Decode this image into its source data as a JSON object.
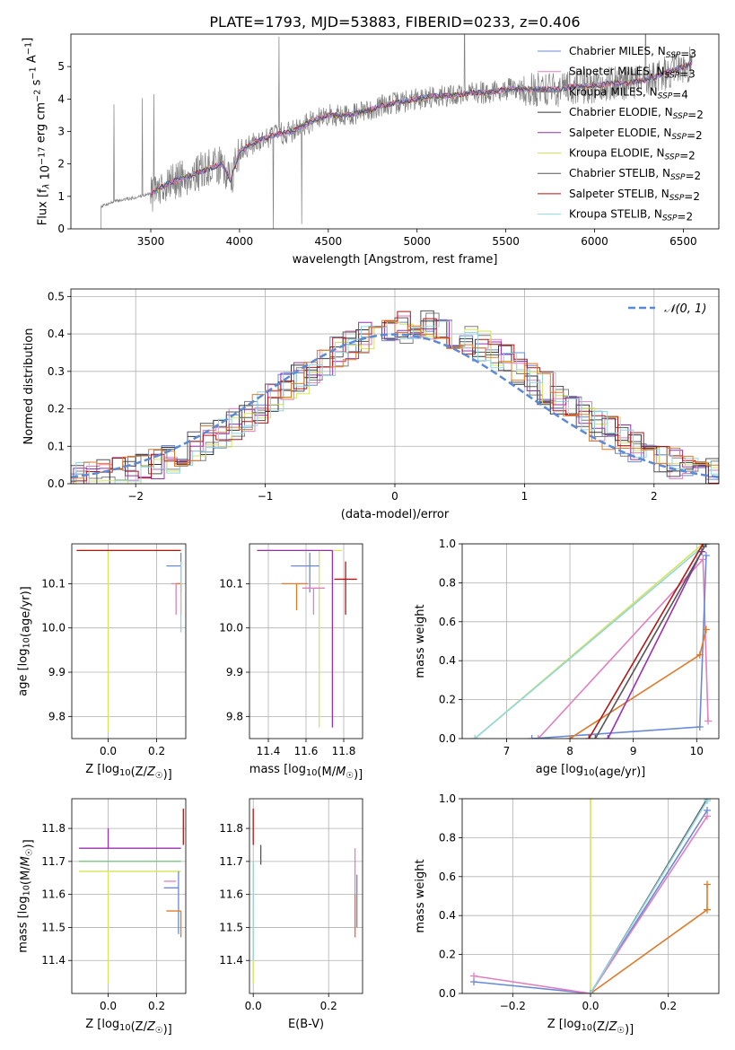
{
  "figure": {
    "title": "PLATE=1793, MJD=53883, FIBERID=0233, z=0.406"
  },
  "chart_data": [
    {
      "id": "spectrum",
      "type": "line",
      "xlabel": "wavelength [Angstrom, rest frame]",
      "ylabel": "Flux [f_λ 10^-17 erg cm^-2 s^-1 A^-1]",
      "xlim": [
        3050,
        6700
      ],
      "ylim": [
        0,
        6
      ],
      "xticks": [
        3500,
        4000,
        4500,
        5000,
        5500,
        6000,
        6500
      ],
      "yticks": [
        0,
        1,
        2,
        3,
        4,
        5
      ],
      "grid": false,
      "legend_position": "top-right",
      "legend": [
        {
          "label": "Chabrier MILES, N_SSP=3",
          "color": "#6a8ad6"
        },
        {
          "label": "Salpeter MILES, N_SSP=3",
          "color": "#e27fbf"
        },
        {
          "label": "Kroupa MILES, N_SSP=4",
          "color": "#7f7f7f"
        },
        {
          "label": "Chabrier ELODIE, N_SSP=2",
          "color": "#333333"
        },
        {
          "label": "Salpeter ELODIE, N_SSP=2",
          "color": "#9a2fb1"
        },
        {
          "label": "Kroupa ELODIE, N_SSP=2",
          "color": "#d6e35a"
        },
        {
          "label": "Chabrier STELIB, N_SSP=2",
          "color": "#555555"
        },
        {
          "label": "Salpeter STELIB, N_SSP=2",
          "color": "#b51515"
        },
        {
          "label": "Kroupa STELIB, N_SSP=2",
          "color": "#8fd6e0"
        }
      ],
      "model_x": [
        3220,
        3300,
        3400,
        3500,
        3600,
        3700,
        3800,
        3900,
        3950,
        4000,
        4100,
        4200,
        4300,
        4400,
        4500,
        4600,
        4700,
        4800,
        4900,
        5000,
        5100,
        5200,
        5300,
        5400,
        5500,
        5600,
        5700,
        5800,
        5900,
        6000,
        6100,
        6200,
        6300,
        6400,
        6500,
        6550
      ],
      "model_y": [
        0.7,
        0.85,
        0.95,
        1.1,
        1.4,
        1.6,
        1.8,
        2.0,
        1.5,
        2.4,
        2.7,
        2.9,
        3.0,
        3.3,
        3.5,
        3.5,
        3.6,
        3.8,
        3.9,
        4.0,
        4.1,
        4.1,
        4.2,
        4.2,
        4.3,
        4.3,
        4.3,
        4.3,
        4.4,
        4.4,
        4.5,
        4.5,
        4.6,
        4.8,
        5.0,
        5.1
      ],
      "data_range": [
        3220,
        6550
      ]
    },
    {
      "id": "residuals",
      "type": "area",
      "xlabel": "(data-model)/error",
      "ylabel": "Normed distribution",
      "xlim": [
        -2.5,
        2.5
      ],
      "ylim": [
        0,
        0.52
      ],
      "xticks": [
        -2,
        -1,
        0,
        1,
        2
      ],
      "yticks": [
        0.0,
        0.1,
        0.2,
        0.3,
        0.4,
        0.5
      ],
      "grid": true,
      "legend_position": "top-right",
      "legend": [
        {
          "label": "𝒩(0, 1)",
          "color": "#5a8ad6"
        }
      ],
      "bin_width": 0.1,
      "colors": [
        "#6a8ad6",
        "#e27fbf",
        "#7f7f7f",
        "#333333",
        "#9a2fb1",
        "#d6e35a",
        "#555555",
        "#b51515",
        "#8fd6e0",
        "#e07a2a"
      ]
    },
    {
      "id": "age_vs_Z",
      "type": "scatter",
      "xlabel": "Z [log10(Z/Z☉)]",
      "ylabel": "age  [log10(age/yr)]",
      "xlim": [
        -0.15,
        0.32
      ],
      "ylim": [
        9.75,
        10.19
      ],
      "xticks": [
        0.0,
        0.2
      ],
      "yticks": [
        9.8,
        9.9,
        10.0,
        10.1
      ],
      "grid": true,
      "points": [
        {
          "x": 0.0,
          "y": 10.175,
          "xerr": [
            0.13,
            0.3
          ],
          "yerr": [
            0.41,
            0.0
          ],
          "color": "#d6e35a"
        },
        {
          "x": 0.0,
          "y": 10.175,
          "xerr": [
            0.13,
            0.3
          ],
          "yerr": [
            0.0,
            0.0
          ],
          "color": "#b51515"
        },
        {
          "x": 0.3,
          "y": 10.14,
          "xerr": [
            0.06,
            0.0
          ],
          "yerr": [
            0.06,
            0.03
          ],
          "color": "#6a8ad6"
        },
        {
          "x": 0.28,
          "y": 10.1,
          "xerr": [
            0.02,
            0.02
          ],
          "yerr": [
            0.07,
            0.0
          ],
          "color": "#e27fbf"
        },
        {
          "x": 0.3,
          "y": 10.1,
          "xerr": [
            0.02,
            0.0
          ],
          "yerr": [
            0.07,
            0.0
          ],
          "color": "#e07a2a"
        },
        {
          "x": 0.3,
          "y": 10.08,
          "xerr": [
            0.0,
            0.0
          ],
          "yerr": [
            0.09,
            0.07
          ],
          "color": "#8fd6e0"
        }
      ]
    },
    {
      "id": "age_vs_mass",
      "type": "scatter",
      "xlabel": "mass [log10(M/M☉)]",
      "ylabel": "",
      "xlim": [
        11.3,
        11.9
      ],
      "ylim": [
        9.75,
        10.19
      ],
      "xticks": [
        11.4,
        11.6,
        11.8
      ],
      "yticks": [
        9.8,
        9.9,
        10.0,
        10.1
      ],
      "grid": true,
      "points": [
        {
          "x": 11.67,
          "y": 10.175,
          "xerr": [
            0.33,
            0.12
          ],
          "yerr": [
            0.4,
            0.0
          ],
          "color": "#d6e35a"
        },
        {
          "x": 11.74,
          "y": 10.175,
          "xerr": [
            0.4,
            0.0
          ],
          "yerr": [
            0.4,
            0.0
          ],
          "color": "#9a2fb1"
        },
        {
          "x": 11.62,
          "y": 10.14,
          "xerr": [
            0.1,
            0.05
          ],
          "yerr": [
            0.06,
            0.03
          ],
          "color": "#6a8ad6"
        },
        {
          "x": 11.64,
          "y": 10.09,
          "xerr": [
            0.06,
            0.06
          ],
          "yerr": [
            0.06,
            0.0
          ],
          "color": "#e27fbf"
        },
        {
          "x": 11.55,
          "y": 10.1,
          "xerr": [
            0.08,
            0.06
          ],
          "yerr": [
            0.06,
            0.0
          ],
          "color": "#e07a2a"
        },
        {
          "x": 11.81,
          "y": 10.11,
          "xerr": [
            0.06,
            0.06
          ],
          "yerr": [
            0.08,
            0.04
          ],
          "color": "#b51515"
        }
      ]
    },
    {
      "id": "weight_vs_age",
      "type": "line",
      "xlabel": "age  [log10(age/yr)]",
      "ylabel": "mass weight",
      "xlim": [
        6.3,
        10.35
      ],
      "ylim": [
        0,
        1
      ],
      "xticks": [
        7,
        8,
        9,
        10
      ],
      "yticks": [
        0.0,
        0.2,
        0.4,
        0.6,
        0.8,
        1.0
      ],
      "grid": true,
      "series": [
        {
          "color": "#d6e35a",
          "points": [
            [
              6.5,
              0.0
            ],
            [
              10.1,
              1.0
            ]
          ]
        },
        {
          "color": "#8fd6e0",
          "points": [
            [
              6.5,
              0.0
            ],
            [
              10.15,
              1.0
            ]
          ]
        },
        {
          "color": "#e27fbf",
          "points": [
            [
              7.5,
              0.0
            ],
            [
              10.1,
              0.92
            ],
            [
              10.18,
              0.09
            ]
          ]
        },
        {
          "color": "#6a8ad6",
          "points": [
            [
              7.4,
              0.0
            ],
            [
              10.05,
              0.06
            ],
            [
              10.15,
              0.94
            ]
          ]
        },
        {
          "color": "#e07a2a",
          "points": [
            [
              8.0,
              0.0
            ],
            [
              10.05,
              0.43
            ],
            [
              10.15,
              0.56
            ]
          ]
        },
        {
          "color": "#9a2fb1",
          "points": [
            [
              8.6,
              0.0
            ],
            [
              10.08,
              0.96
            ]
          ]
        },
        {
          "color": "#b51515",
          "points": [
            [
              8.3,
              0.0
            ],
            [
              10.1,
              1.0
            ]
          ]
        },
        {
          "color": "#555555",
          "points": [
            [
              8.4,
              0.0
            ],
            [
              10.15,
              1.0
            ]
          ]
        }
      ]
    },
    {
      "id": "mass_vs_Z",
      "type": "scatter",
      "xlabel": "Z [log10(Z/Z☉)]",
      "ylabel": "mass [log10(M/M☉)]",
      "xlim": [
        -0.15,
        0.32
      ],
      "ylim": [
        11.3,
        11.89
      ],
      "xticks": [
        0.0,
        0.2
      ],
      "yticks": [
        11.4,
        11.5,
        11.6,
        11.7,
        11.8
      ],
      "grid": true,
      "points": [
        {
          "x": 0.0,
          "y": 11.74,
          "xerr": [
            0.12,
            0.3
          ],
          "yerr": [
            0.0,
            0.06
          ],
          "color": "#9a2fb1"
        },
        {
          "x": 0.0,
          "y": 11.7,
          "xerr": [
            0.12,
            0.3
          ],
          "yerr": [
            0.0,
            0.0
          ],
          "color": "#555555"
        },
        {
          "x": 0.0,
          "y": 11.7,
          "xerr": [
            0.12,
            0.3
          ],
          "yerr": [
            0.0,
            0.0
          ],
          "color": "#7fd18a"
        },
        {
          "x": 0.0,
          "y": 11.67,
          "xerr": [
            0.12,
            0.3
          ],
          "yerr": [
            0.34,
            0.0
          ],
          "color": "#d6e35a"
        },
        {
          "x": 0.29,
          "y": 11.62,
          "xerr": [
            0.06,
            0.0
          ],
          "yerr": [
            0.14,
            0.05
          ],
          "color": "#6a8ad6"
        },
        {
          "x": 0.28,
          "y": 11.64,
          "xerr": [
            0.05,
            0.0
          ],
          "yerr": [
            0.0,
            0.0
          ],
          "color": "#e27fbf"
        },
        {
          "x": 0.3,
          "y": 11.55,
          "xerr": [
            0.06,
            0.0
          ],
          "yerr": [
            0.08,
            0.0
          ],
          "color": "#e07a2a"
        },
        {
          "x": 0.31,
          "y": 11.8,
          "xerr": [
            0.0,
            0.0
          ],
          "yerr": [
            0.05,
            0.06
          ],
          "color": "#b51515"
        }
      ]
    },
    {
      "id": "mass_vs_ebv",
      "type": "scatter",
      "xlabel": "E(B-V)",
      "ylabel": "",
      "xlim": [
        -0.01,
        0.29
      ],
      "ylim": [
        11.3,
        11.89
      ],
      "xticks": [
        0.0,
        0.2
      ],
      "yticks": [
        11.4,
        11.5,
        11.6,
        11.7,
        11.8
      ],
      "grid": true,
      "points": [
        {
          "x": 0.0,
          "y": 11.8,
          "xerr": [
            0.0,
            0.0
          ],
          "yerr": [
            0.05,
            0.06
          ],
          "color": "#b51515"
        },
        {
          "x": 0.0,
          "y": 11.6,
          "xerr": [
            0.0,
            0.0
          ],
          "yerr": [
            0.27,
            0.1
          ],
          "color": "#d6e35a"
        },
        {
          "x": 0.0,
          "y": 11.6,
          "xerr": [
            0.0,
            0.0
          ],
          "yerr": [
            0.2,
            0.1
          ],
          "color": "#8fd6e0"
        },
        {
          "x": 0.02,
          "y": 11.72,
          "xerr": [
            0.0,
            0.0
          ],
          "yerr": [
            0.03,
            0.03
          ],
          "color": "#555555"
        },
        {
          "x": 0.27,
          "y": 11.6,
          "xerr": [
            0.0,
            0.0
          ],
          "yerr": [
            0.13,
            0.14
          ],
          "color": "#e27fbf"
        },
        {
          "x": 0.27,
          "y": 11.55,
          "xerr": [
            0.0,
            0.0
          ],
          "yerr": [
            0.08,
            0.05
          ],
          "color": "#e07a2a"
        },
        {
          "x": 0.275,
          "y": 11.6,
          "xerr": [
            0.0,
            0.0
          ],
          "yerr": [
            0.1,
            0.06
          ],
          "color": "#6a8ad6"
        }
      ]
    },
    {
      "id": "weight_vs_Z",
      "type": "line",
      "xlabel": "Z [log10(Z/Z☉)]",
      "ylabel": "mass weight",
      "xlim": [
        -0.33,
        0.33
      ],
      "ylim": [
        0,
        1
      ],
      "xticks": [
        -0.2,
        0.0,
        0.2
      ],
      "yticks": [
        0.0,
        0.2,
        0.4,
        0.6,
        0.8,
        1.0
      ],
      "grid": true,
      "series": [
        {
          "color": "#d6e35a",
          "points": [
            [
              0.0,
              0.0
            ],
            [
              0.0,
              1.0
            ]
          ]
        },
        {
          "color": "#e07a2a",
          "points": [
            [
              0.0,
              0.0
            ],
            [
              0.3,
              0.43
            ],
            [
              0.3,
              0.56
            ]
          ]
        },
        {
          "color": "#6a8ad6",
          "points": [
            [
              -0.3,
              0.06
            ],
            [
              0.0,
              0.0
            ],
            [
              0.3,
              0.94
            ]
          ]
        },
        {
          "color": "#e27fbf",
          "points": [
            [
              -0.3,
              0.09
            ],
            [
              0.0,
              0.0
            ],
            [
              0.3,
              0.91
            ]
          ]
        },
        {
          "color": "#555555",
          "points": [
            [
              0.0,
              0.0
            ],
            [
              0.3,
              1.0
            ]
          ]
        },
        {
          "color": "#8fd6e0",
          "points": [
            [
              0.0,
              0.0
            ],
            [
              0.3,
              0.99
            ]
          ]
        }
      ]
    }
  ]
}
